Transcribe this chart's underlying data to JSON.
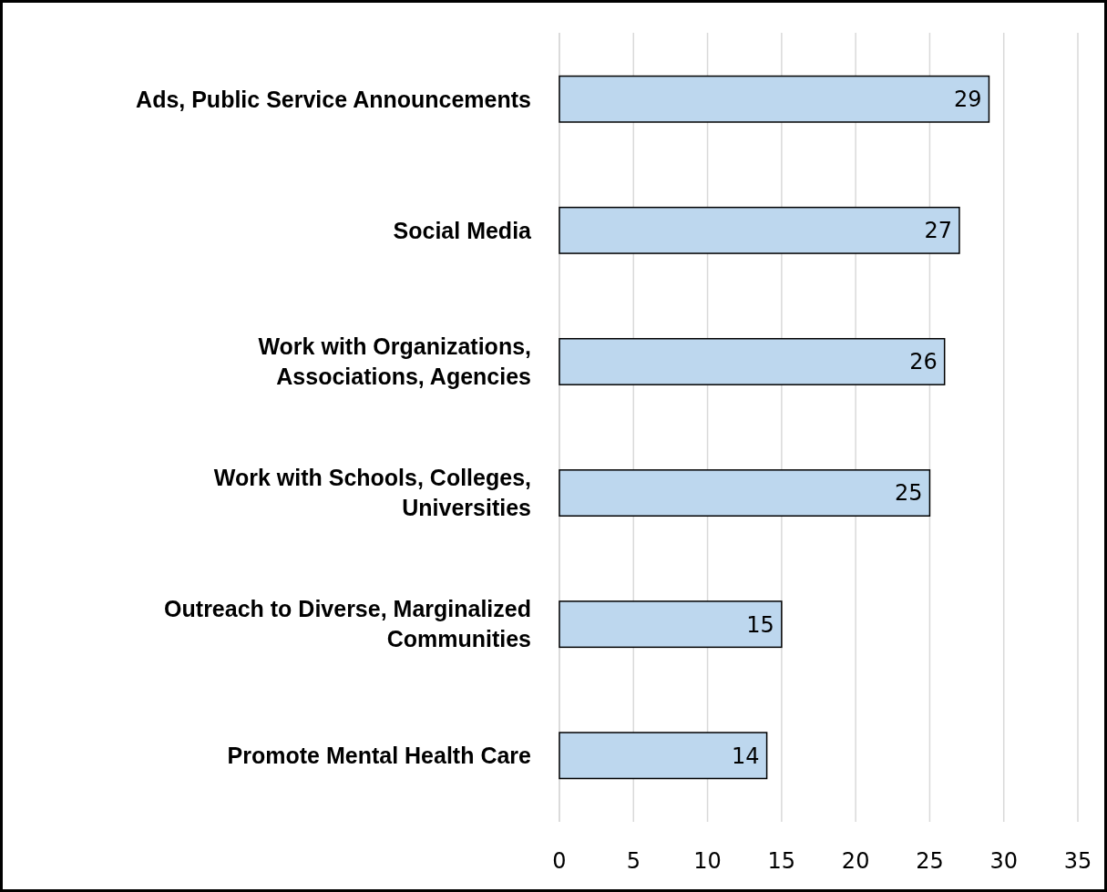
{
  "chart_data": {
    "type": "bar",
    "orientation": "horizontal",
    "categories": [
      "Ads, Public Service Announcements",
      "Social Media",
      "Work with Organizations, Associations, Agencies",
      "Work with Schools, Colleges, Universities",
      "Outreach to Diverse, Marginalized Communities",
      "Promote Mental Health Care"
    ],
    "values": [
      29,
      27,
      26,
      25,
      15,
      14
    ],
    "color": "#bdd7ee",
    "xlim": [
      0,
      35
    ],
    "xticks": [
      0,
      5,
      10,
      15,
      20,
      25,
      30,
      35
    ],
    "grid": "x",
    "data_labels": true
  }
}
